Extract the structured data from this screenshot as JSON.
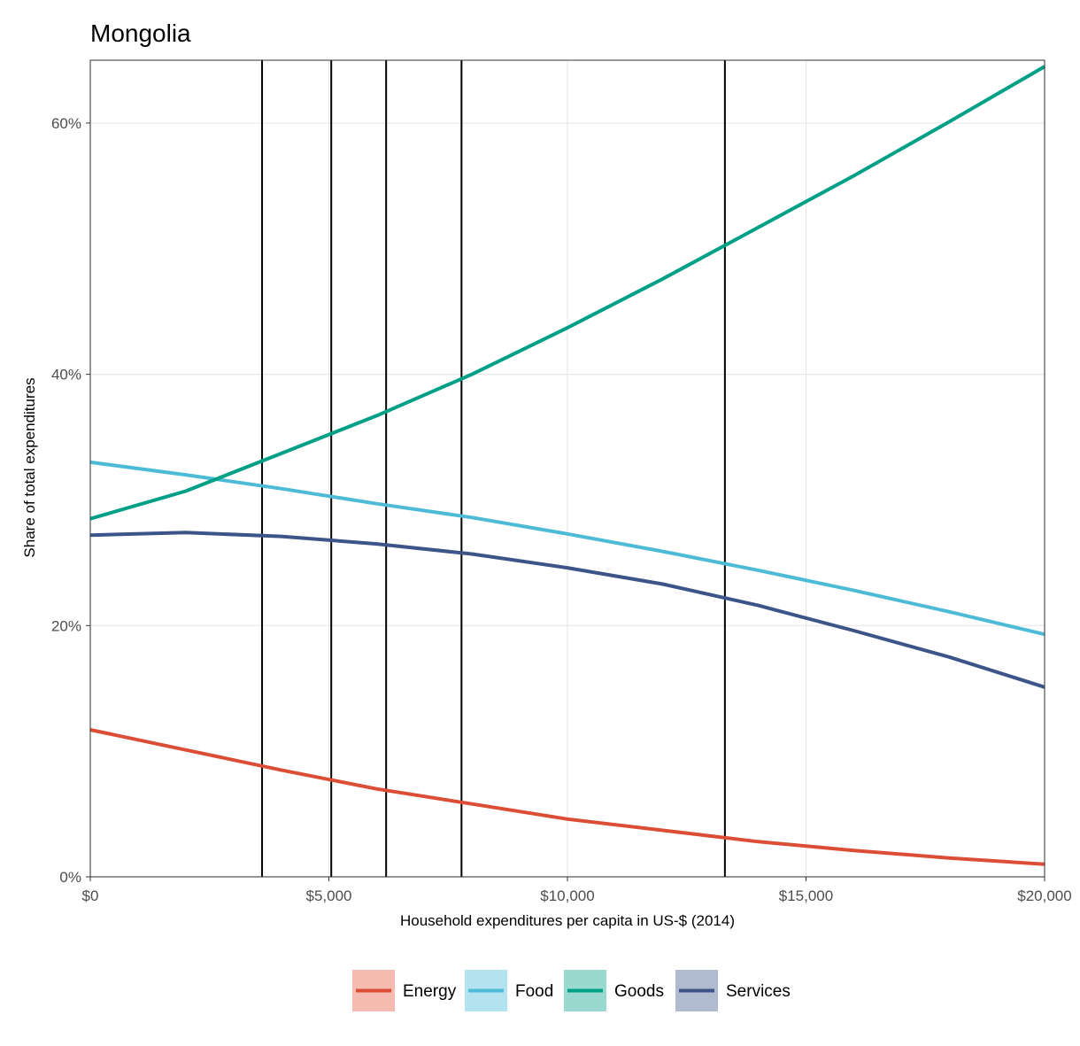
{
  "chart_data": {
    "type": "line",
    "title": "Mongolia",
    "xlabel": "Household expenditures per capita in US-$ (2014)",
    "ylabel": "Share of total expenditures",
    "xlim": [
      0,
      20000
    ],
    "ylim": [
      0,
      65
    ],
    "x_ticks": [
      {
        "value": 0,
        "label": "$0"
      },
      {
        "value": 5000,
        "label": "$5,000"
      },
      {
        "value": 10000,
        "label": "$10,000"
      },
      {
        "value": 15000,
        "label": "$15,000"
      },
      {
        "value": 20000,
        "label": "$20,000"
      }
    ],
    "y_ticks": [
      {
        "value": 0,
        "label": "0%"
      },
      {
        "value": 20,
        "label": "20%"
      },
      {
        "value": 40,
        "label": "40%"
      },
      {
        "value": 60,
        "label": "60%"
      }
    ],
    "grid": true,
    "legend_position": "bottom",
    "vertical_lines": [
      3600,
      5050,
      6200,
      7780,
      13300
    ],
    "series": [
      {
        "name": "Energy",
        "color": "#DC4D35",
        "legend_bg": "#F5BBB0",
        "points": [
          [
            0,
            11.7
          ],
          [
            2000,
            10.1
          ],
          [
            4000,
            8.5
          ],
          [
            6000,
            7.0
          ],
          [
            8000,
            5.8
          ],
          [
            10000,
            4.6
          ],
          [
            12000,
            3.7
          ],
          [
            14000,
            2.8
          ],
          [
            16000,
            2.1
          ],
          [
            18000,
            1.5
          ],
          [
            20000,
            1.0
          ]
        ]
      },
      {
        "name": "Food",
        "color": "#4DBBD5",
        "legend_bg": "#B3E3EF",
        "points": [
          [
            0,
            33.0
          ],
          [
            2000,
            32.0
          ],
          [
            4000,
            30.9
          ],
          [
            6000,
            29.7
          ],
          [
            8000,
            28.6
          ],
          [
            10000,
            27.3
          ],
          [
            12000,
            25.9
          ],
          [
            14000,
            24.4
          ],
          [
            16000,
            22.8
          ],
          [
            18000,
            21.1
          ],
          [
            20000,
            19.3
          ]
        ]
      },
      {
        "name": "Goods",
        "color": "#00A087",
        "legend_bg": "#99D9CF",
        "points": [
          [
            0,
            28.5
          ],
          [
            2000,
            30.7
          ],
          [
            4000,
            33.7
          ],
          [
            6000,
            36.7
          ],
          [
            8000,
            40.0
          ],
          [
            10000,
            43.7
          ],
          [
            12000,
            47.6
          ],
          [
            14000,
            51.7
          ],
          [
            16000,
            55.8
          ],
          [
            18000,
            60.1
          ],
          [
            20000,
            64.5
          ]
        ]
      },
      {
        "name": "Services",
        "color": "#3C5488",
        "legend_bg": "#B1BBCF",
        "points": [
          [
            0,
            27.2
          ],
          [
            2000,
            27.4
          ],
          [
            4000,
            27.1
          ],
          [
            6000,
            26.5
          ],
          [
            8000,
            25.7
          ],
          [
            10000,
            24.6
          ],
          [
            12000,
            23.3
          ],
          [
            14000,
            21.6
          ],
          [
            16000,
            19.6
          ],
          [
            18000,
            17.5
          ],
          [
            20000,
            15.1
          ]
        ]
      }
    ]
  }
}
